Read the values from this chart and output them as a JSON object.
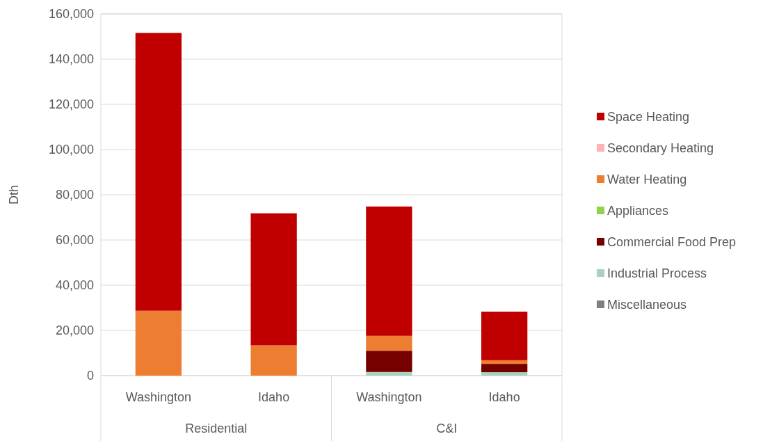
{
  "chart_data": {
    "type": "bar",
    "stacked": true,
    "ylabel": "Dth",
    "categories": [
      "Washington",
      "Idaho",
      "Washington",
      "Idaho"
    ],
    "annotations": [
      "Residential",
      "C&I"
    ],
    "series": [
      {
        "name": "Miscellaneous",
        "color": "#7f7f7f",
        "values": [
          0,
          0,
          0,
          0
        ]
      },
      {
        "name": "Industrial Process",
        "color": "#a9d1c0",
        "values": [
          0,
          0,
          1600,
          1500
        ]
      },
      {
        "name": "Commercial Food Prep",
        "color": "#760000",
        "values": [
          0,
          0,
          9400,
          3700
        ]
      },
      {
        "name": "Appliances",
        "color": "#92d050",
        "values": [
          0,
          0,
          0,
          0
        ]
      },
      {
        "name": "Water Heating",
        "color": "#ed7d31",
        "values": [
          28700,
          13400,
          6600,
          1600
        ]
      },
      {
        "name": "Secondary Heating",
        "color": "#ffb3b3",
        "values": [
          0,
          0,
          0,
          0
        ]
      },
      {
        "name": "Space Heating",
        "color": "#c00000",
        "values": [
          122900,
          58400,
          57200,
          21500
        ]
      }
    ],
    "ylim": [
      0,
      160000
    ],
    "yticks": [
      {
        "value": 0,
        "label": "0"
      },
      {
        "value": 20000,
        "label": "20,000"
      },
      {
        "value": 40000,
        "label": "40,000"
      },
      {
        "value": 60000,
        "label": "60,000"
      },
      {
        "value": 80000,
        "label": "80,000"
      },
      {
        "value": 100000,
        "label": "100,000"
      },
      {
        "value": 120000,
        "label": "120,000"
      },
      {
        "value": 140000,
        "label": "140,000"
      },
      {
        "value": 160000,
        "label": "160,000"
      }
    ],
    "grid": "y",
    "legend": "right"
  }
}
